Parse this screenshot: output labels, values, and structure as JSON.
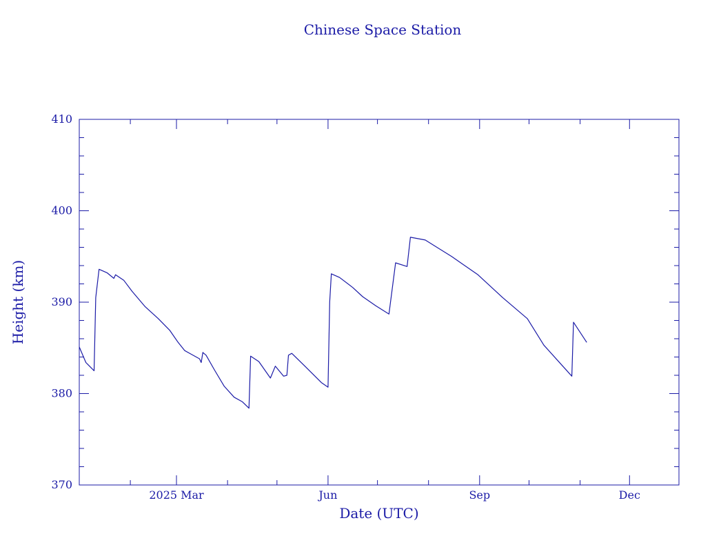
{
  "chart_data": {
    "type": "line",
    "title": "Chinese Space Station",
    "xlabel": "Date (UTC)",
    "ylabel": "Height (km)",
    "color": "#1a1aa6",
    "xlim": [
      "2025-01-01",
      "2025-12-31"
    ],
    "ylim": [
      370,
      410
    ],
    "y_ticks": [
      370,
      380,
      390,
      400,
      410
    ],
    "x_ticks": [
      {
        "date": "2025-03-01",
        "label": "2025 Mar"
      },
      {
        "date": "2025-06-01",
        "label": "Jun"
      },
      {
        "date": "2025-09-01",
        "label": "Sep"
      },
      {
        "date": "2025-12-01",
        "label": "Dec"
      }
    ],
    "grid": false,
    "series": [
      {
        "points": [
          [
            "2025-01-01",
            385.1
          ],
          [
            "2025-01-05",
            383.4
          ],
          [
            "2025-01-10",
            382.5
          ],
          [
            "2025-01-11",
            390.5
          ],
          [
            "2025-01-13",
            393.6
          ],
          [
            "2025-01-18",
            393.2
          ],
          [
            "2025-01-22",
            392.6
          ],
          [
            "2025-01-23",
            393.0
          ],
          [
            "2025-01-28",
            392.4
          ],
          [
            "2025-02-02",
            391.2
          ],
          [
            "2025-02-10",
            389.5
          ],
          [
            "2025-02-18",
            388.2
          ],
          [
            "2025-02-25",
            386.9
          ],
          [
            "2025-03-02",
            385.6
          ],
          [
            "2025-03-06",
            384.7
          ],
          [
            "2025-03-10",
            384.3
          ],
          [
            "2025-03-15",
            383.8
          ],
          [
            "2025-03-16",
            383.4
          ],
          [
            "2025-03-17",
            384.5
          ],
          [
            "2025-03-19",
            384.2
          ],
          [
            "2025-03-24",
            382.6
          ],
          [
            "2025-03-30",
            380.8
          ],
          [
            "2025-04-05",
            379.6
          ],
          [
            "2025-04-10",
            379.1
          ],
          [
            "2025-04-14",
            378.4
          ],
          [
            "2025-04-15",
            384.1
          ],
          [
            "2025-04-20",
            383.5
          ],
          [
            "2025-04-27",
            381.7
          ],
          [
            "2025-04-30",
            383.0
          ],
          [
            "2025-05-05",
            381.9
          ],
          [
            "2025-05-07",
            382.0
          ],
          [
            "2025-05-08",
            384.2
          ],
          [
            "2025-05-10",
            384.4
          ],
          [
            "2025-05-18",
            383.0
          ],
          [
            "2025-05-28",
            381.2
          ],
          [
            "2025-06-01",
            380.7
          ],
          [
            "2025-06-02",
            390.0
          ],
          [
            "2025-06-03",
            393.1
          ],
          [
            "2025-06-08",
            392.7
          ],
          [
            "2025-06-16",
            391.6
          ],
          [
            "2025-06-22",
            390.6
          ],
          [
            "2025-06-30",
            389.6
          ],
          [
            "2025-07-08",
            388.7
          ],
          [
            "2025-07-12",
            394.3
          ],
          [
            "2025-07-19",
            393.9
          ],
          [
            "2025-07-21",
            397.1
          ],
          [
            "2025-07-30",
            396.8
          ],
          [
            "2025-08-15",
            395.0
          ],
          [
            "2025-08-31",
            393.0
          ],
          [
            "2025-09-15",
            390.5
          ],
          [
            "2025-09-30",
            388.2
          ],
          [
            "2025-10-10",
            385.3
          ],
          [
            "2025-10-20",
            383.3
          ],
          [
            "2025-10-27",
            381.9
          ],
          [
            "2025-10-28",
            387.8
          ],
          [
            "2025-11-05",
            385.6
          ]
        ]
      }
    ]
  }
}
